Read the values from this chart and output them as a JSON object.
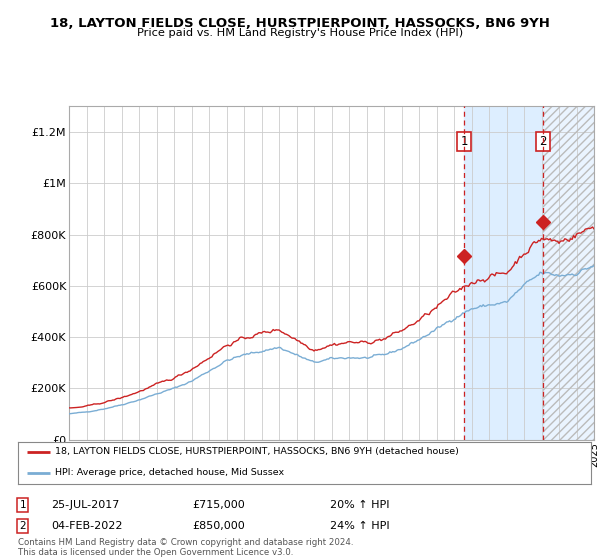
{
  "title": "18, LAYTON FIELDS CLOSE, HURSTPIERPOINT, HASSOCKS, BN6 9YH",
  "subtitle": "Price paid vs. HM Land Registry's House Price Index (HPI)",
  "ylim": [
    0,
    1300000
  ],
  "yticks": [
    0,
    200000,
    400000,
    600000,
    800000,
    1000000,
    1200000
  ],
  "ytick_labels": [
    "£0",
    "£200K",
    "£400K",
    "£600K",
    "£800K",
    "£1M",
    "£1.2M"
  ],
  "hpi_color": "#7aadd4",
  "price_color": "#cc2222",
  "marker1_label": "25-JUL-2017",
  "marker1_price": "£715,000",
  "marker1_pct": "20% ↑ HPI",
  "marker2_label": "04-FEB-2022",
  "marker2_price": "£850,000",
  "marker2_pct": "24% ↑ HPI",
  "legend_line1": "18, LAYTON FIELDS CLOSE, HURSTPIERPOINT, HASSOCKS, BN6 9YH (detached house)",
  "legend_line2": "HPI: Average price, detached house, Mid Sussex",
  "footnote": "Contains HM Land Registry data © Crown copyright and database right 2024.\nThis data is licensed under the Open Government Licence v3.0.",
  "background_color": "#ffffff",
  "plot_bg_color": "#ffffff",
  "grid_color": "#cccccc",
  "shade_color": "#ddeeff",
  "marker1_x": 2017.58,
  "marker1_y": 715000,
  "marker2_x": 2022.09,
  "marker2_y": 850000,
  "xmin": 1995,
  "xmax": 2025
}
